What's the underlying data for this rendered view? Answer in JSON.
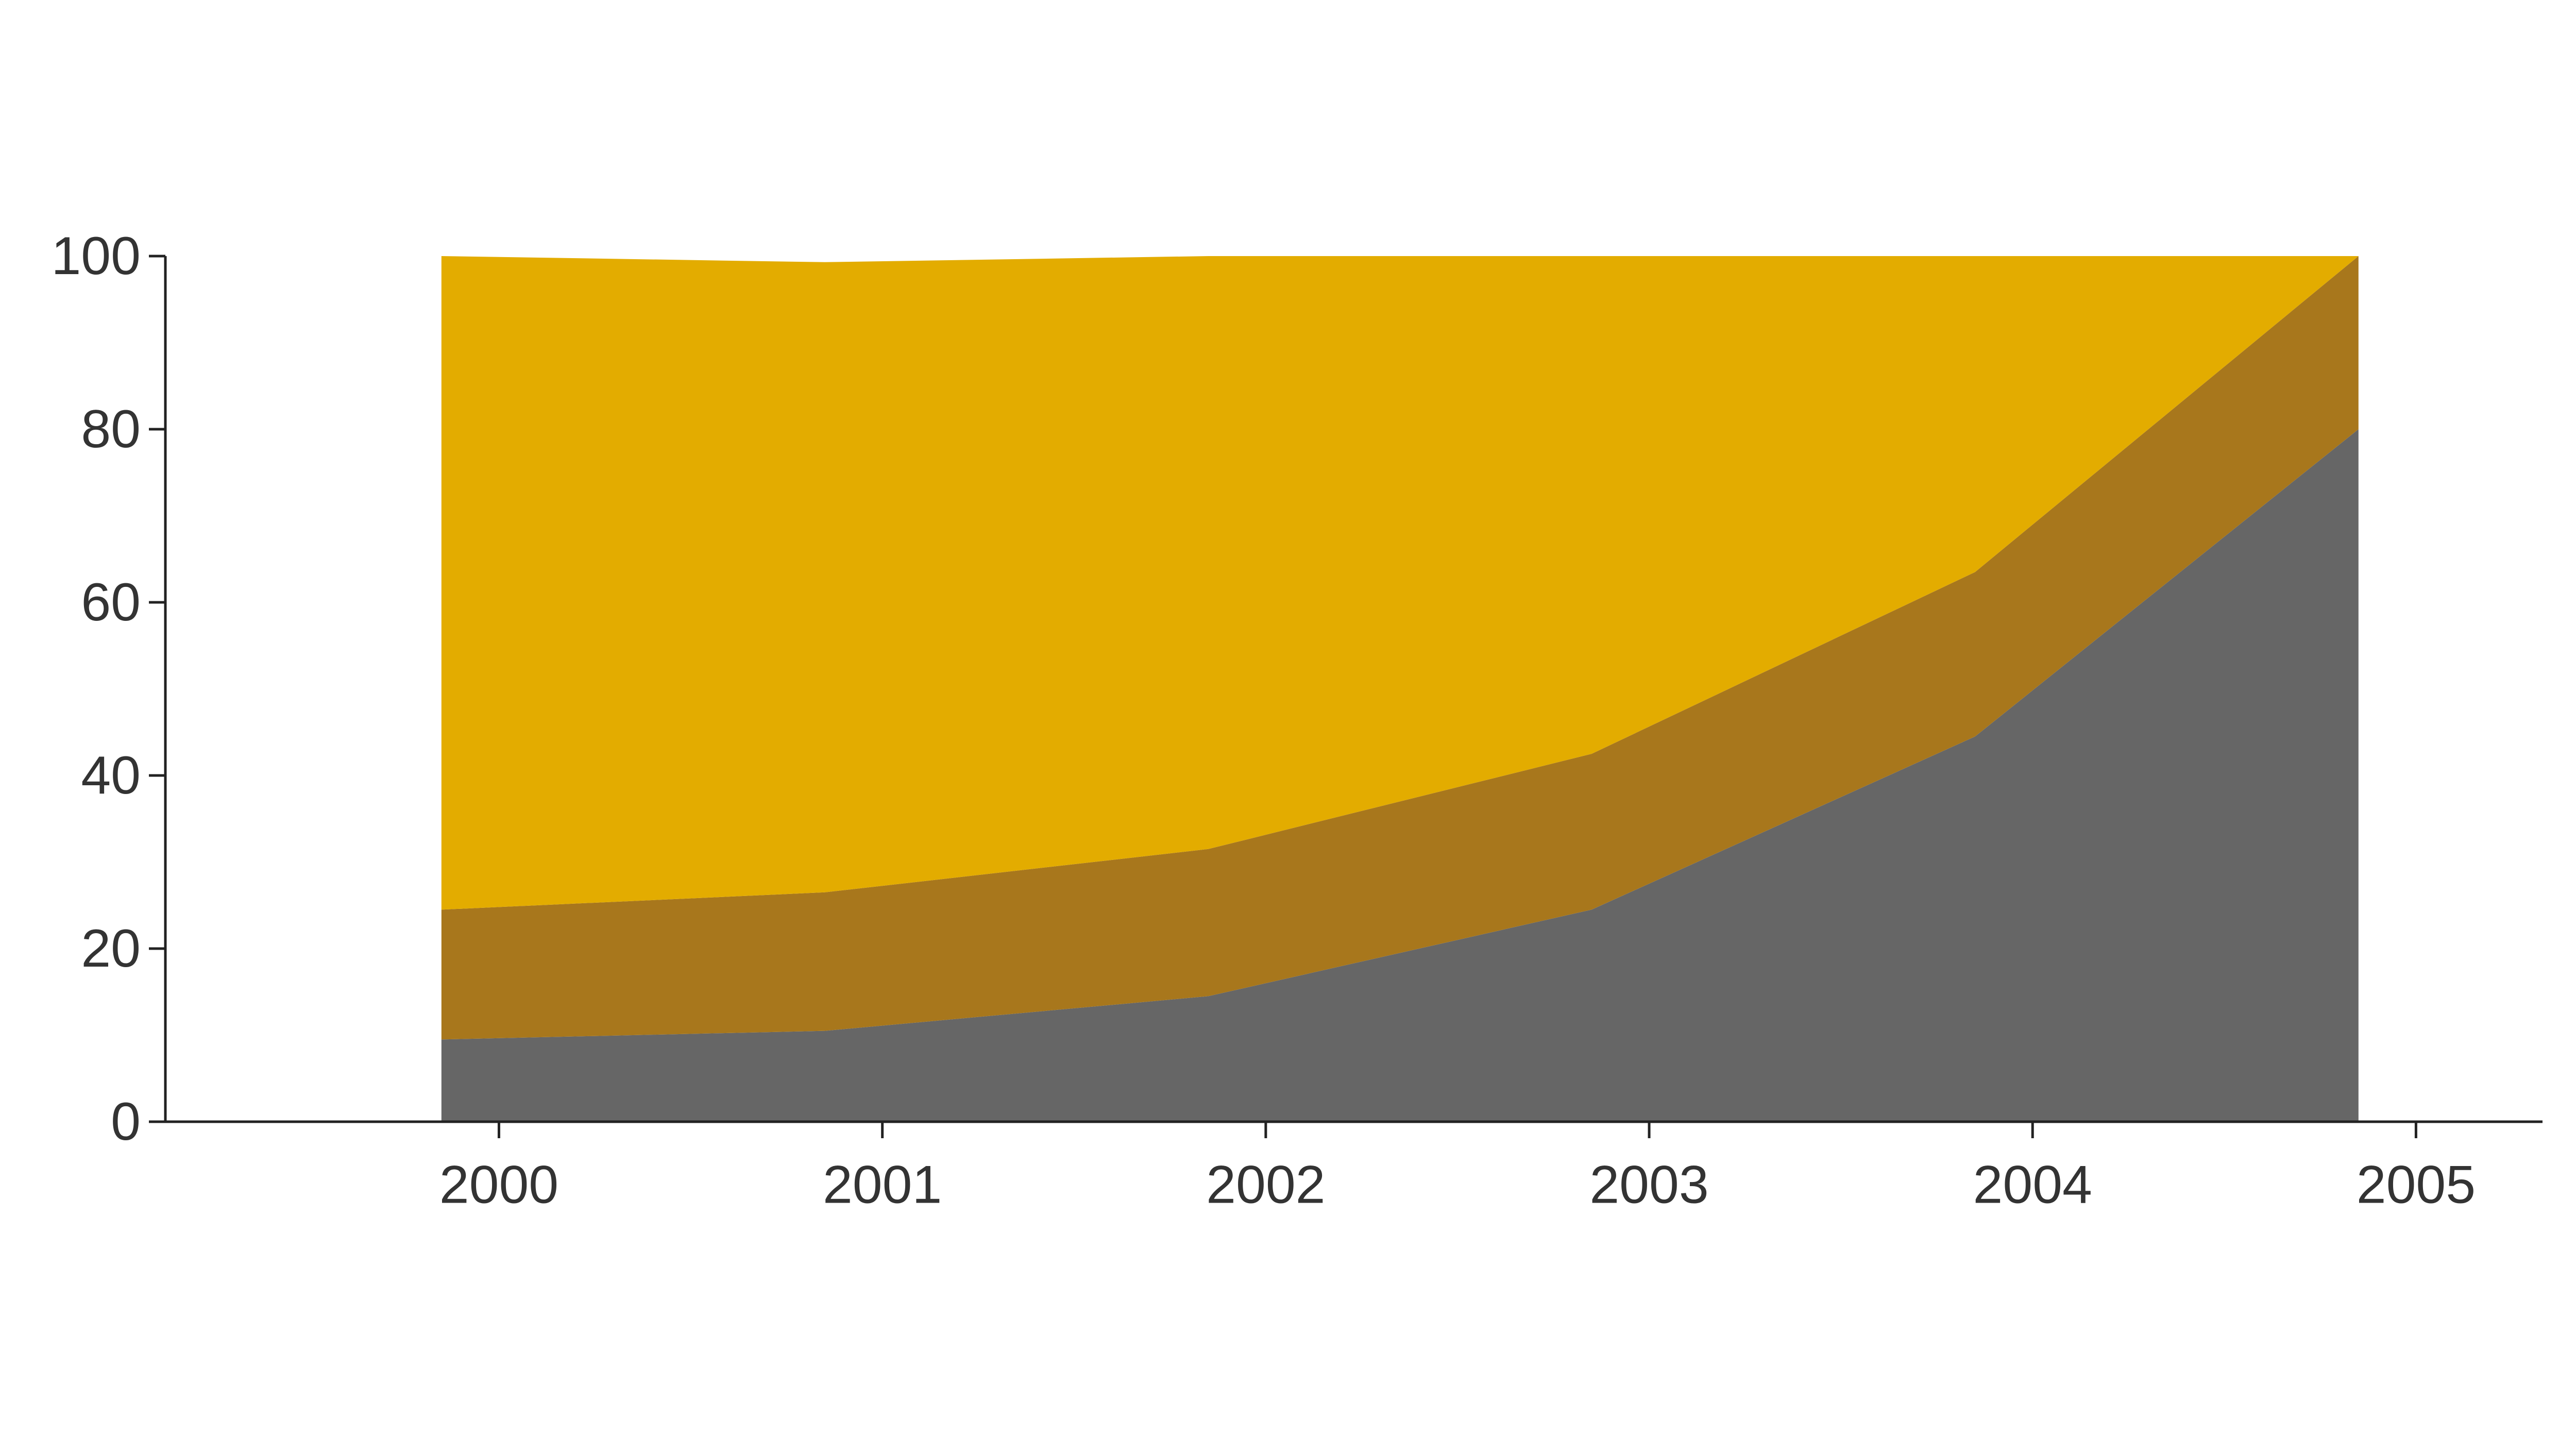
{
  "chart_data": {
    "type": "area",
    "stacked": true,
    "x": [
      1999.85,
      2000.85,
      2001.85,
      2002.85,
      2003.85,
      2004.85
    ],
    "series": [
      {
        "values": [
          9.5,
          10.5,
          14.5,
          24.5,
          44.5,
          80
        ],
        "color": "#666666"
      },
      {
        "values": [
          15,
          16,
          17,
          18,
          19,
          20
        ],
        "color": "#a8771c"
      },
      {
        "values": [
          75.5,
          72.8,
          68.5,
          57.5,
          36.5,
          0
        ],
        "color": "#e3ac00"
      }
    ],
    "xticks": [
      2000,
      2001,
      2002,
      2003,
      2004,
      2005
    ],
    "xtick_labels": [
      "2000",
      "2001",
      "2002",
      "2003",
      "2004",
      "2005"
    ],
    "yticks": [
      0,
      20,
      40,
      60,
      80,
      100
    ],
    "ytick_labels": [
      "0",
      "20",
      "40",
      "60",
      "80",
      "100"
    ],
    "xlim": [
      1999.13,
      2005.33
    ],
    "ylim": [
      0,
      100
    ],
    "grid": false,
    "legend": "none"
  }
}
